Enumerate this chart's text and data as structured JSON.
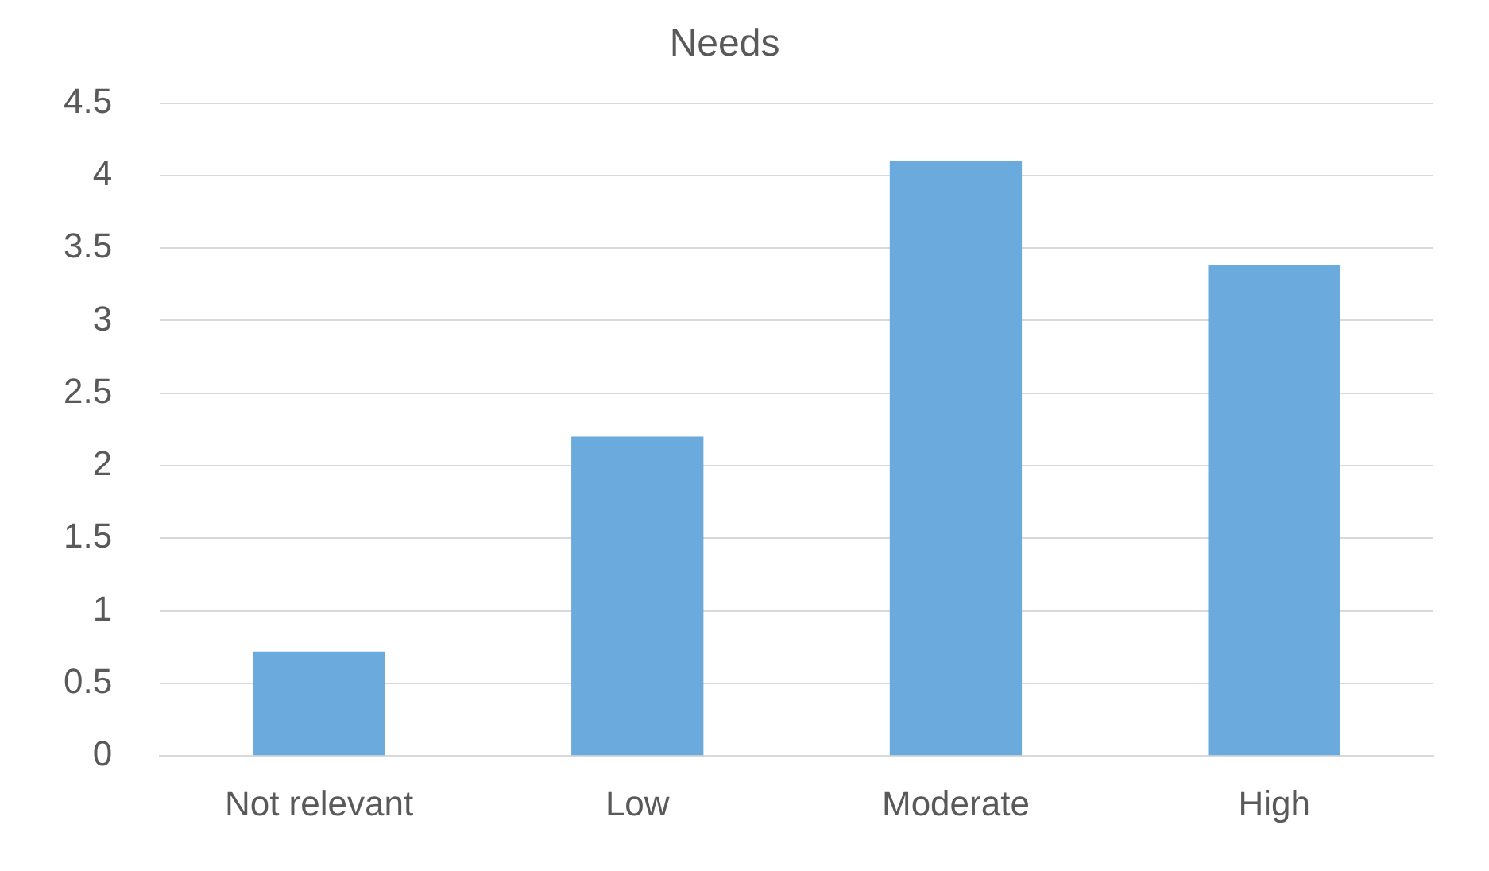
{
  "chart_data": {
    "type": "bar",
    "title": "Needs",
    "categories": [
      "Not relevant",
      "Low",
      "Moderate",
      "High"
    ],
    "values": [
      0.72,
      2.2,
      4.1,
      3.38
    ],
    "color": "#6aaadc",
    "ylim": [
      0,
      4.5
    ],
    "yticks": [
      0,
      0.5,
      1,
      1.5,
      2,
      2.5,
      3,
      3.5,
      4,
      4.5
    ],
    "grid": "y",
    "legend": false
  }
}
